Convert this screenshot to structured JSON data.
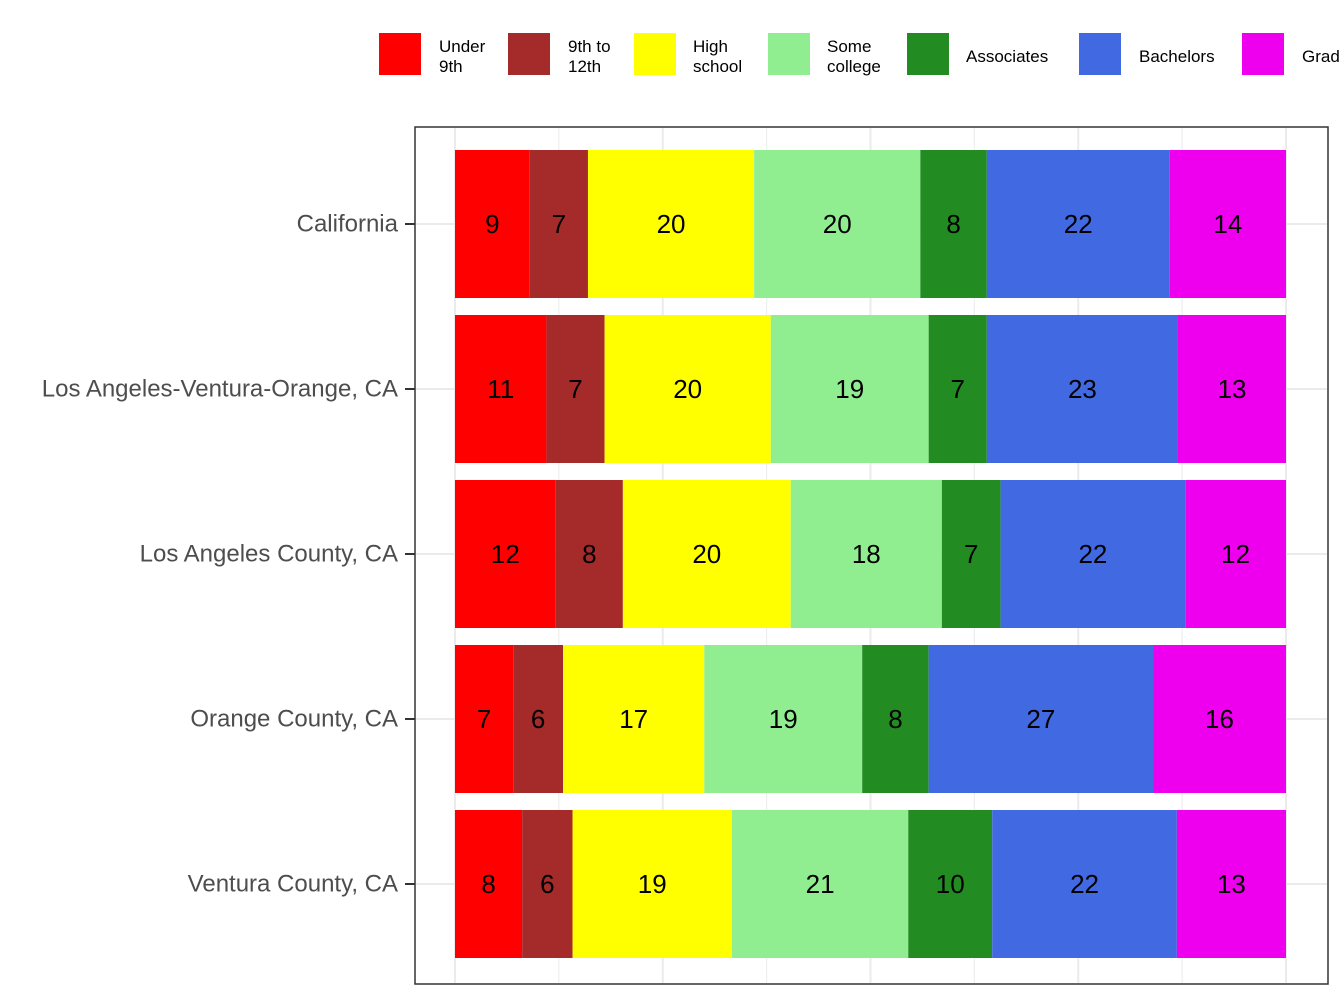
{
  "chart_data": {
    "type": "bar",
    "orientation": "horizontal",
    "stacked": true,
    "normalized": true,
    "categories": [
      "California",
      "Los Angeles-Ventura-Orange, CA",
      "Los Angeles County, CA",
      "Orange County, CA",
      "Ventura County, CA"
    ],
    "series": [
      {
        "name": "Under 9th",
        "legend_lines": [
          "Under",
          "9th"
        ],
        "color": "#ff0000",
        "values": [
          9,
          11,
          12,
          7,
          8
        ]
      },
      {
        "name": "9th to 12th",
        "legend_lines": [
          "9th to",
          "12th"
        ],
        "color": "#a52a2a",
        "values": [
          7,
          7,
          8,
          6,
          6
        ]
      },
      {
        "name": "High school",
        "legend_lines": [
          "High",
          "school"
        ],
        "color": "#ffff00",
        "values": [
          20,
          20,
          20,
          17,
          19
        ]
      },
      {
        "name": "Some college",
        "legend_lines": [
          "Some",
          "college"
        ],
        "color": "#90ee90",
        "values": [
          20,
          19,
          18,
          19,
          21
        ]
      },
      {
        "name": "Associates",
        "legend_lines": [
          "Associates"
        ],
        "color": "#228b22",
        "values": [
          8,
          7,
          7,
          8,
          10
        ]
      },
      {
        "name": "Bachelors",
        "legend_lines": [
          "Bachelors"
        ],
        "color": "#4169e1",
        "values": [
          22,
          23,
          22,
          27,
          22
        ]
      },
      {
        "name": "Graduate",
        "legend_lines": [
          "Grad"
        ],
        "color": "#ee00ee",
        "values": [
          14,
          13,
          12,
          16,
          13
        ]
      }
    ],
    "title": "",
    "xlabel": "",
    "ylabel": "",
    "xlim": [
      0,
      100
    ],
    "grid": true,
    "legend_position": "top"
  }
}
